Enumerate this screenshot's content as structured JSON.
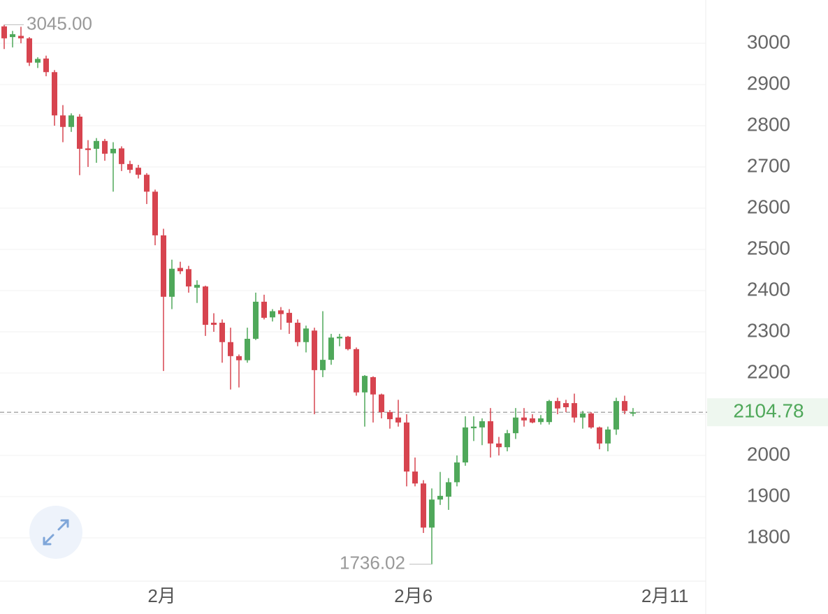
{
  "chart_data": {
    "type": "candlestick",
    "categories": [
      null,
      null,
      null,
      null,
      null,
      null,
      null,
      null,
      null,
      null,
      null,
      null,
      null,
      null,
      null,
      null,
      null,
      null,
      null,
      null,
      null,
      null,
      null,
      null,
      null,
      null,
      null,
      null,
      null,
      null,
      null,
      null,
      null,
      null,
      null,
      null,
      null,
      null,
      null,
      null,
      null,
      null,
      null,
      null,
      null,
      null,
      null,
      null,
      null,
      null,
      null,
      null,
      null,
      null,
      null,
      null,
      null,
      null,
      null,
      null,
      null,
      null,
      null,
      null,
      null,
      null,
      null,
      null,
      null,
      null,
      null,
      null,
      null,
      null,
      null,
      null
    ],
    "open": [
      3041,
      3015,
      3018,
      3012,
      2953,
      2963,
      2930,
      2825,
      2797,
      2822,
      2745,
      2744,
      2763,
      2733,
      2745,
      2707,
      2698,
      2681,
      2640,
      2534,
      2385,
      2455,
      2452,
      2407,
      2410,
      2322,
      2322,
      2275,
      2241,
      2231,
      2283,
      2373,
      2335,
      2352,
      2346,
      2322,
      2275,
      2303,
      2207,
      2232,
      2284,
      2288,
      2258,
      2153,
      2190,
      2148,
      2105,
      2092,
      2080,
      1961,
      1932,
      1825,
      1893,
      1900,
      1935,
      1983,
      2066,
      2068,
      2083,
      2029,
      2020,
      2054,
      2092,
      2090,
      2081,
      2081,
      2132,
      2127,
      2127,
      2092,
      2102,
      2068,
      2029,
      2063,
      2132,
      2103
    ],
    "high": [
      3045,
      3030,
      3040,
      3015,
      2966,
      2970,
      2935,
      2850,
      2830,
      2828,
      2765,
      2770,
      2768,
      2760,
      2750,
      2715,
      2705,
      2685,
      2645,
      2550,
      2475,
      2470,
      2460,
      2425,
      2412,
      2345,
      2330,
      2310,
      2245,
      2310,
      2395,
      2390,
      2355,
      2360,
      2355,
      2330,
      2315,
      2310,
      2350,
      2295,
      2295,
      2290,
      2262,
      2195,
      2192,
      2150,
      2110,
      2135,
      2100,
      1995,
      1940,
      1920,
      1960,
      1945,
      2000,
      2095,
      2095,
      2090,
      2115,
      2045,
      2062,
      2115,
      2115,
      2100,
      2098,
      2135,
      2140,
      2135,
      2150,
      2108,
      2105,
      2070,
      2070,
      2140,
      2145,
      2115
    ],
    "low": [
      2986,
      2990,
      3000,
      2945,
      2940,
      2920,
      2800,
      2760,
      2785,
      2680,
      2700,
      2710,
      2715,
      2640,
      2690,
      2685,
      2672,
      2610,
      2510,
      2205,
      2355,
      2440,
      2395,
      2370,
      2290,
      2300,
      2225,
      2160,
      2165,
      2225,
      2280,
      2330,
      2325,
      2305,
      2295,
      2265,
      2250,
      2100,
      2190,
      2220,
      2265,
      2255,
      2145,
      2070,
      2080,
      2090,
      2065,
      2070,
      1925,
      1925,
      1812,
      1736.02,
      1880,
      1868,
      1925,
      1975,
      2035,
      2025,
      1995,
      2000,
      2010,
      2040,
      2070,
      2078,
      2075,
      2075,
      2100,
      2105,
      2080,
      2065,
      2065,
      2015,
      2010,
      2050,
      2100,
      2095
    ],
    "close": [
      3012,
      3022,
      3012,
      2953,
      2962,
      2930,
      2825,
      2797,
      2825,
      2744,
      2741,
      2763,
      2732,
      2744,
      2707,
      2693,
      2681,
      2640,
      2534,
      2385,
      2453,
      2447,
      2410,
      2414,
      2317,
      2317,
      2275,
      2241,
      2231,
      2283,
      2373,
      2334,
      2350,
      2343,
      2322,
      2275,
      2308,
      2207,
      2232,
      2286,
      2288,
      2258,
      2153,
      2193,
      2148,
      2105,
      2088,
      2080,
      1961,
      1932,
      1825,
      1893,
      1902,
      1935,
      1983,
      2068,
      2070,
      2083,
      2029,
      2020,
      2054,
      2092,
      2085,
      2080,
      2090,
      2132,
      2114,
      2117,
      2092,
      2102,
      2068,
      2029,
      2063,
      2132,
      2108,
      2104.78
    ],
    "up_color": "#4fa85a",
    "down_color": "#d7444f",
    "high_label": "3045.00",
    "low_label": "1736.02",
    "last_label": "2104.78",
    "xlim": [
      -0.5,
      83.67
    ],
    "xticks": [
      {
        "value": 18.8,
        "label": "2月"
      },
      {
        "value": 48.8,
        "label": "2月6"
      },
      {
        "value": 78.8,
        "label": "2月11"
      }
    ],
    "ylim": [
      1695,
      3105
    ],
    "yticks": [
      1800,
      1900,
      2000,
      2100,
      2200,
      2300,
      2400,
      2500,
      2600,
      2700,
      2800,
      2900,
      3000
    ],
    "grid": true
  }
}
